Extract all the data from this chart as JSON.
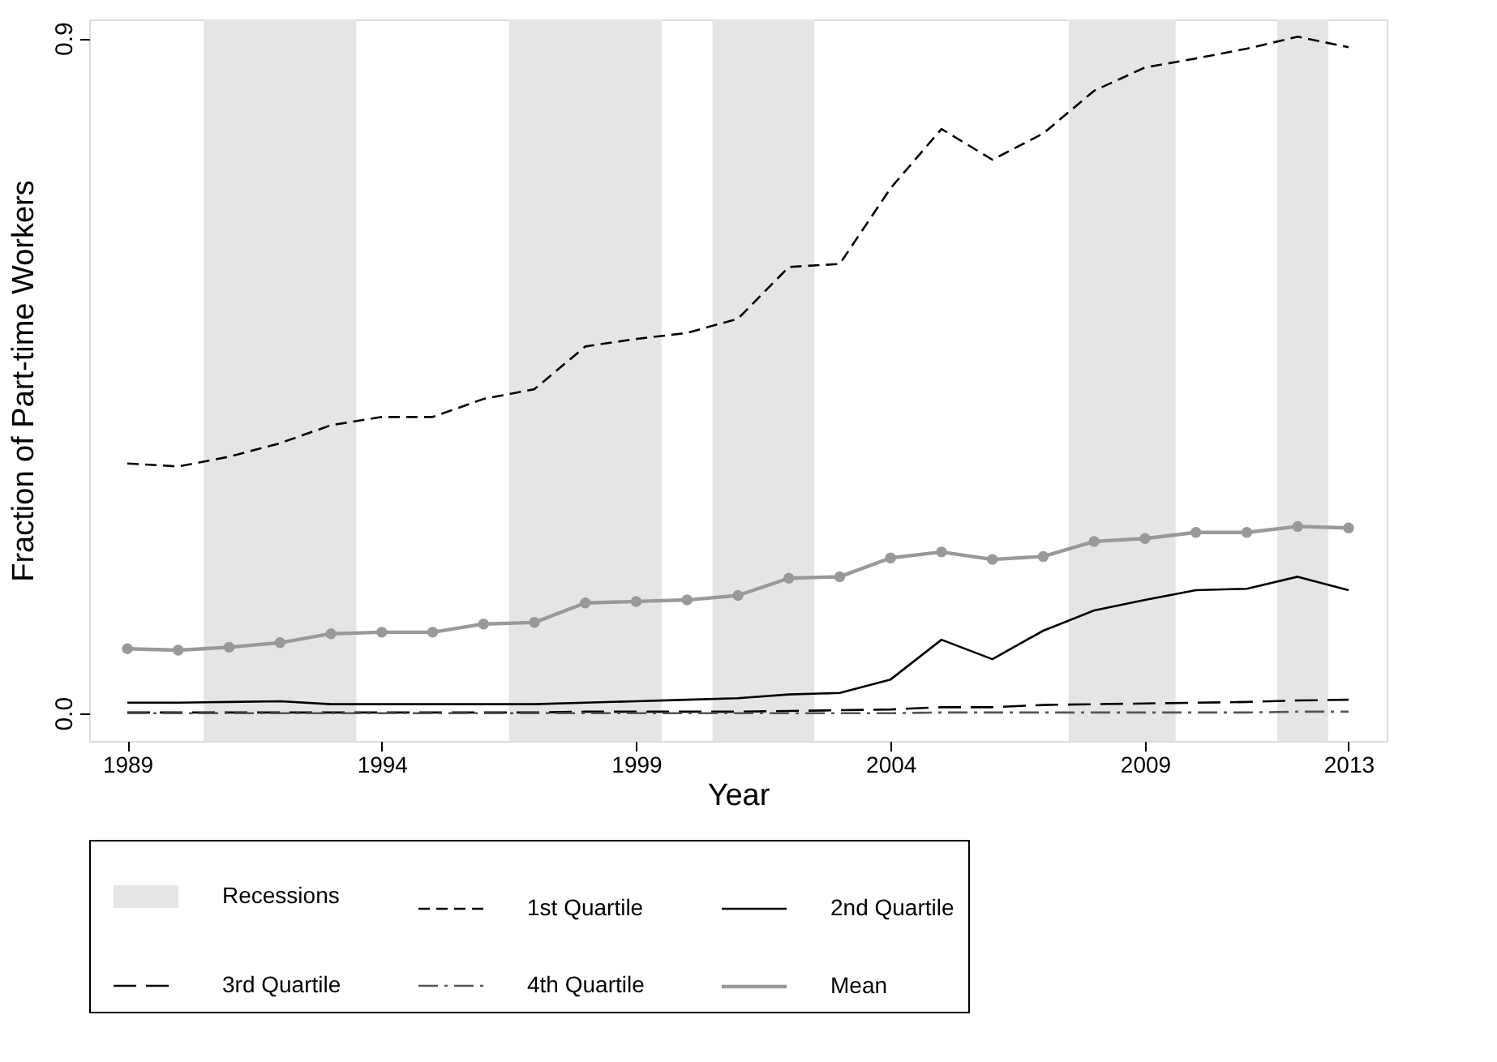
{
  "chart_data": {
    "type": "line",
    "xlabel": "Year",
    "ylabel": "Fraction of Part-time Workers",
    "x": [
      1989,
      1990,
      1991,
      1992,
      1993,
      1994,
      1995,
      1996,
      1997,
      1998,
      1999,
      2000,
      2001,
      2002,
      2003,
      2004,
      2005,
      2006,
      2007,
      2008,
      2009,
      2010,
      2011,
      2012,
      2013
    ],
    "series": [
      {
        "name": "1st Quartile",
        "color": "#000000",
        "line_style": "dashed",
        "values": [
          0.333,
          0.329,
          0.342,
          0.36,
          0.384,
          0.395,
          0.395,
          0.419,
          0.432,
          0.489,
          0.499,
          0.507,
          0.526,
          0.595,
          0.599,
          0.7,
          0.779,
          0.738,
          0.773,
          0.83,
          0.861,
          0.873,
          0.886,
          0.902,
          0.888
        ]
      },
      {
        "name": "2nd Quartile",
        "color": "#000000",
        "line_style": "solid",
        "values": [
          0.014,
          0.014,
          0.015,
          0.016,
          0.012,
          0.012,
          0.012,
          0.012,
          0.012,
          0.014,
          0.016,
          0.018,
          0.02,
          0.025,
          0.027,
          0.045,
          0.098,
          0.072,
          0.11,
          0.137,
          0.151,
          0.164,
          0.166,
          0.182,
          0.164
        ]
      },
      {
        "name": "3rd Quartile",
        "color": "#000000",
        "line_style": "longdash",
        "values": [
          0.001,
          0.001,
          0.001,
          0.001,
          0.001,
          0.001,
          0.001,
          0.001,
          0.001,
          0.002,
          0.002,
          0.002,
          0.002,
          0.003,
          0.004,
          0.005,
          0.008,
          0.008,
          0.011,
          0.012,
          0.013,
          0.014,
          0.015,
          0.017,
          0.018
        ]
      },
      {
        "name": "4th Quartile",
        "color": "#555555",
        "line_style": "dashdot",
        "values": [
          0.0,
          0.0,
          0.0,
          0.0,
          0.0,
          0.0,
          0.0,
          0.0,
          0.0,
          0.0,
          0.0,
          0.0,
          0.0,
          0.0,
          0.0,
          0.0,
          0.001,
          0.001,
          0.001,
          0.001,
          0.001,
          0.001,
          0.001,
          0.002,
          0.002
        ]
      },
      {
        "name": "Mean",
        "color": "#999999",
        "line_style": "solid",
        "marker": "circle",
        "values": [
          0.086,
          0.084,
          0.088,
          0.094,
          0.106,
          0.108,
          0.108,
          0.119,
          0.121,
          0.147,
          0.149,
          0.151,
          0.157,
          0.18,
          0.182,
          0.207,
          0.215,
          0.205,
          0.209,
          0.229,
          0.233,
          0.241,
          0.241,
          0.249,
          0.247
        ]
      }
    ],
    "bands": [
      {
        "axis": "x",
        "from": 1990.5,
        "to": 1993.5,
        "label": "Recessions",
        "color": "#e5e5e5"
      },
      {
        "axis": "x",
        "from": 1996.5,
        "to": 1999.5,
        "color": "#e5e5e5"
      },
      {
        "axis": "x",
        "from": 2000.5,
        "to": 2002.5,
        "color": "#e5e5e5"
      },
      {
        "axis": "x",
        "from": 2007.5,
        "to": 2009.6,
        "color": "#e5e5e5"
      },
      {
        "axis": "x",
        "from": 2011.6,
        "to": 2012.6,
        "color": "#e5e5e5"
      }
    ],
    "xlim": [
      1988.25,
      2013.75
    ],
    "xticks": [
      1989,
      1994,
      1999,
      2004,
      2009,
      2013
    ],
    "ylim": [
      -0.037,
      0.925
    ],
    "yticks": [
      {
        "value": 0,
        "label": "0.0"
      },
      {
        "value": 0.9,
        "label": "0.9"
      }
    ],
    "grid": false,
    "legend": "bottom"
  }
}
